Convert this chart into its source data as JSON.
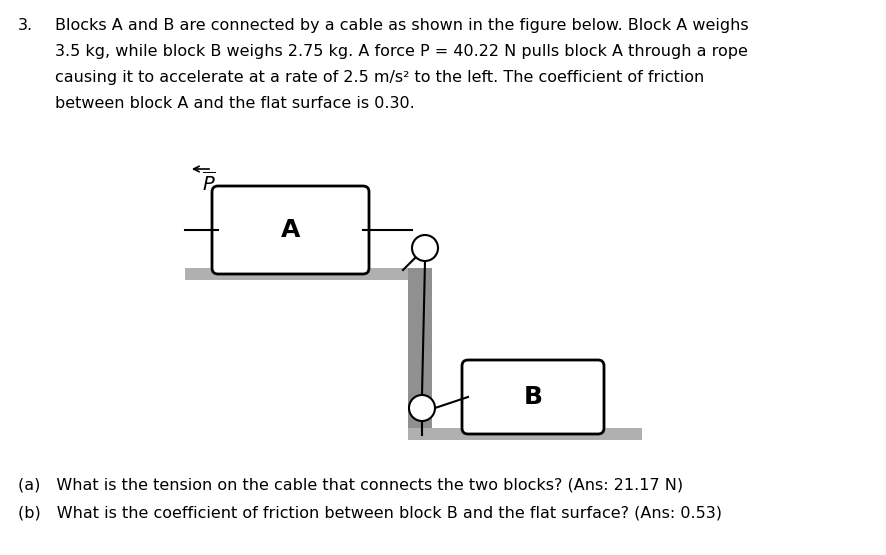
{
  "bg_color": "#ffffff",
  "surface_color": "#b0b0b0",
  "block_color": "#ffffff",
  "block_edge_color": "#000000",
  "wall_color": "#909090",
  "text_color": "#000000",
  "fig_width": 8.86,
  "fig_height": 5.55,
  "lines": [
    "Blocks A and B are connected by a cable as shown in the figure below. Block A weighs",
    "3.5 kg, while block B weighs 2.75 kg. A force P = 40.22 N pulls block A through a rope",
    "causing it to accelerate at a rate of 2.5 m/s² to the left. The coefficient of friction",
    "between block A and the flat surface is 0.30."
  ],
  "question_a": "(a) What is the tension on the cable that connects the two blocks? (Ans: 21.17 N)",
  "question_b": "(b) What is the coefficient of friction between block B and the flat surface? (Ans: 0.53)",
  "number": "3."
}
